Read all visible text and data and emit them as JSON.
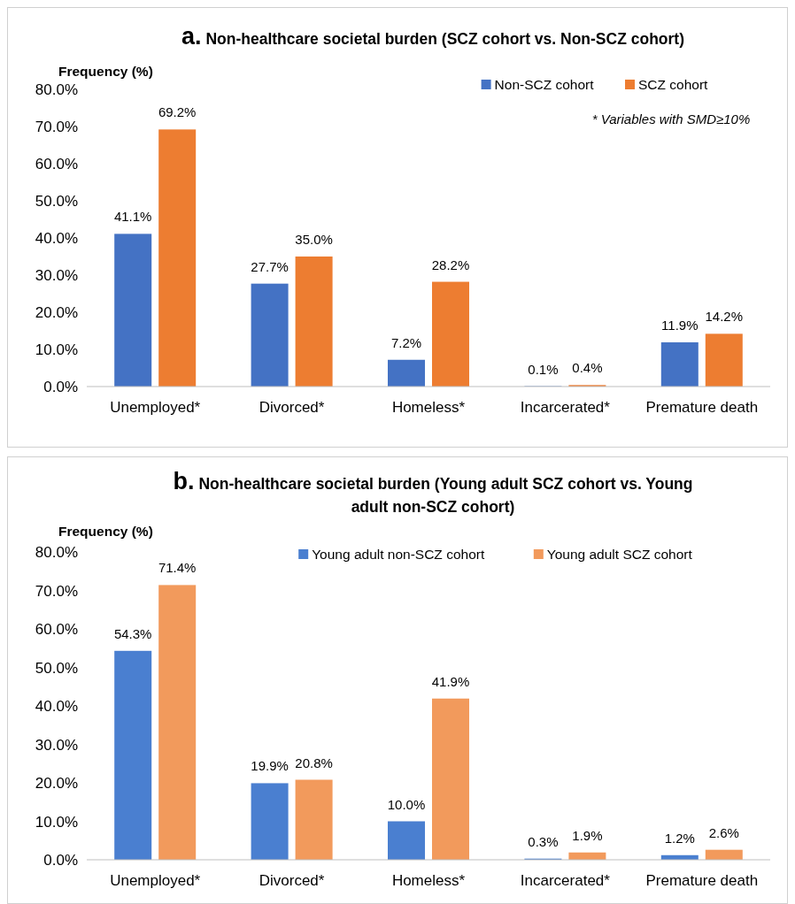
{
  "chart_data": [
    {
      "type": "bar",
      "title": "a. Non-healthcare societal burden (SCZ cohort vs. Non-SCZ cohort)",
      "ylabel": "Frequency (%)",
      "categories": [
        "Unemployed*",
        "Divorced*",
        "Homeless*",
        "Incarcerated*",
        "Premature death"
      ],
      "series": [
        {
          "name": "Non-SCZ cohort",
          "color": "#4472c4",
          "values": [
            41.1,
            27.7,
            7.2,
            0.1,
            11.9
          ],
          "value_labels": [
            "41.1%",
            "27.7%",
            "7.2%",
            "0.1%",
            "11.9%"
          ]
        },
        {
          "name": "SCZ cohort",
          "color": "#ed7d31",
          "values": [
            69.2,
            35.0,
            28.2,
            0.4,
            14.2
          ],
          "value_labels": [
            "69.2%",
            "35.0%",
            "28.2%",
            "0.4%",
            "14.2%"
          ]
        }
      ],
      "ylim": [
        0,
        80
      ],
      "yticks": [
        {
          "value": 0,
          "label": "0.0%"
        },
        {
          "value": 10,
          "label": "10.0%"
        },
        {
          "value": 20,
          "label": "20.0%"
        },
        {
          "value": 30,
          "label": "30.0%"
        },
        {
          "value": 40,
          "label": "40.0%"
        },
        {
          "value": 50,
          "label": "50.0%"
        },
        {
          "value": 60,
          "label": "60.0%"
        },
        {
          "value": 70,
          "label": "70.0%"
        },
        {
          "value": 80,
          "label": "80.0%"
        }
      ],
      "annotations": [
        "* Variables with SMD≥10%"
      ],
      "legend": "top right",
      "grid": false
    },
    {
      "type": "bar",
      "title": "b. Non-healthcare societal burden (Young adult SCZ cohort vs. Young adult non-SCZ cohort)",
      "ylabel": "Frequency (%)",
      "categories": [
        "Unemployed*",
        "Divorced*",
        "Homeless*",
        "Incarcerated*",
        "Premature death"
      ],
      "series": [
        {
          "name": "Young adult non-SCZ cohort",
          "color": "#4a7fd0",
          "values": [
            54.3,
            19.9,
            10.0,
            0.3,
            1.2
          ],
          "value_labels": [
            "54.3%",
            "19.9%",
            "10.0%",
            "0.3%",
            "1.2%"
          ]
        },
        {
          "name": "Young adult SCZ cohort",
          "color": "#f29a5c",
          "values": [
            71.4,
            20.8,
            41.9,
            1.9,
            2.6
          ],
          "value_labels": [
            "71.4%",
            "20.8%",
            "41.9%",
            "1.9%",
            "2.6%"
          ]
        }
      ],
      "ylim": [
        0,
        80
      ],
      "yticks": [
        {
          "value": 0,
          "label": "0.0%"
        },
        {
          "value": 10,
          "label": "10.0%"
        },
        {
          "value": 20,
          "label": "20.0%"
        },
        {
          "value": 30,
          "label": "30.0%"
        },
        {
          "value": 40,
          "label": "40.0%"
        },
        {
          "value": 50,
          "label": "50.0%"
        },
        {
          "value": 60,
          "label": "60.0%"
        },
        {
          "value": 70,
          "label": "70.0%"
        },
        {
          "value": 80,
          "label": "80.0%"
        }
      ],
      "legend": "top right",
      "grid": false
    }
  ]
}
